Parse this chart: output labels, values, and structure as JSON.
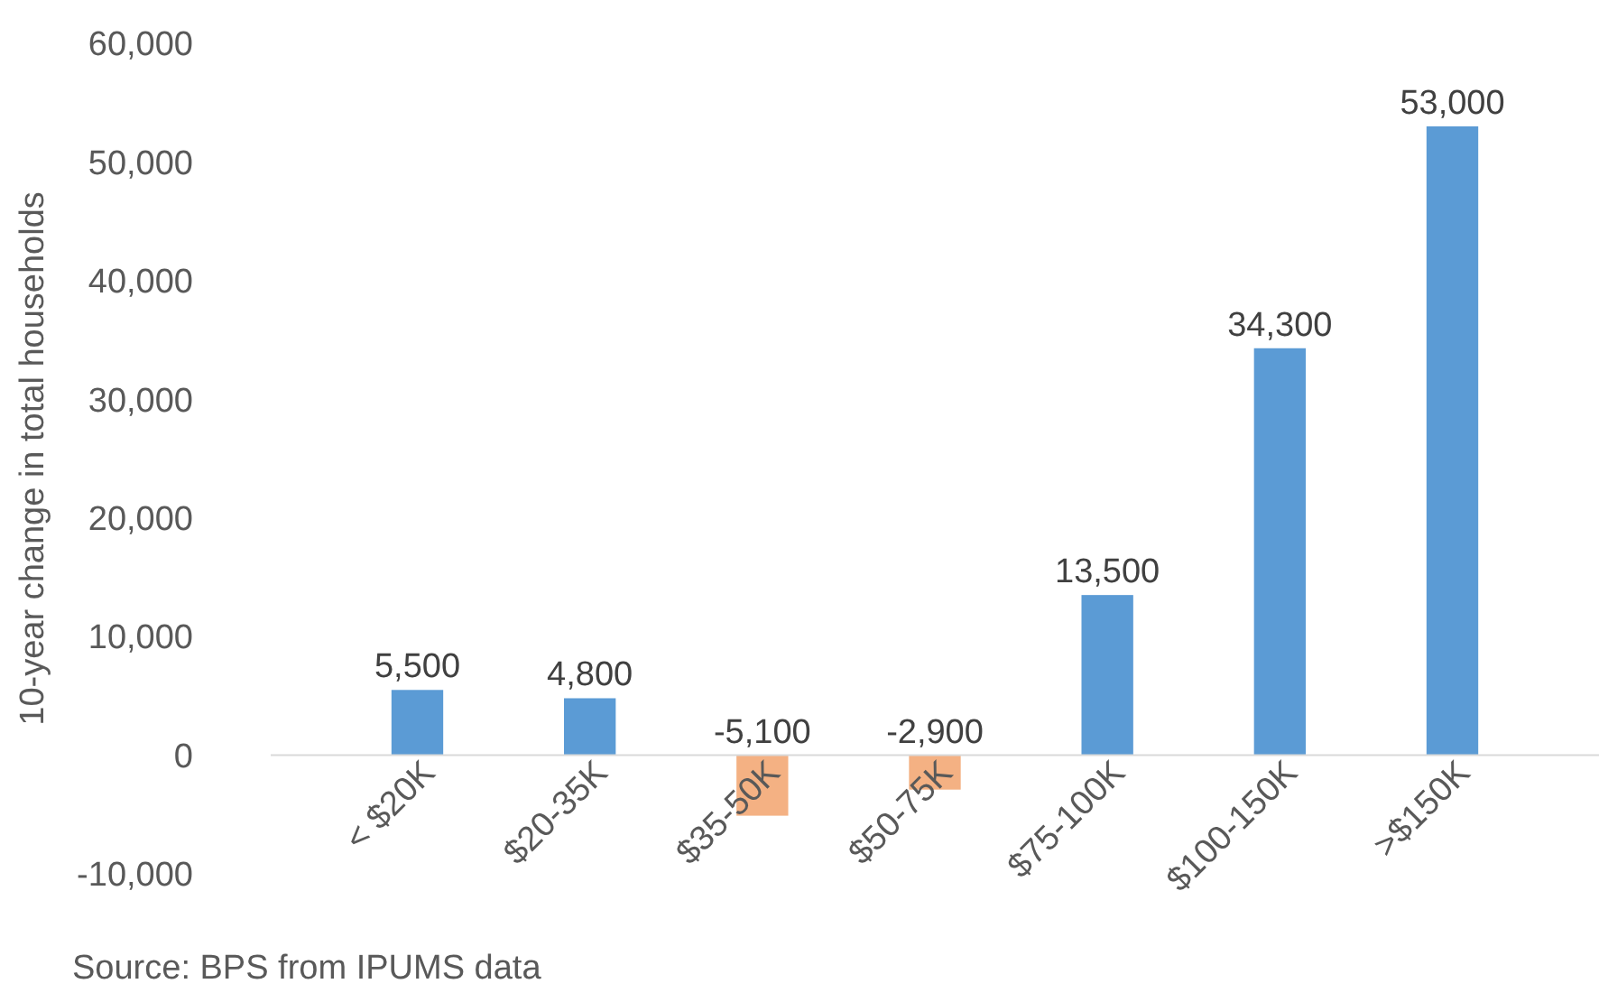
{
  "chart_data": {
    "type": "bar",
    "ylabel": "10-year change in total households",
    "categories": [
      "< $20K",
      "$20-35K",
      "$35-50K",
      "$50-75K",
      "$75-100K",
      "$100-150K",
      ">$150K"
    ],
    "values": [
      5500,
      4800,
      -5100,
      -2900,
      13500,
      34300,
      53000
    ],
    "colors": [
      "#5b9bd5",
      "#5b9bd5",
      "#f4b183",
      "#f4b183",
      "#5b9bd5",
      "#5b9bd5",
      "#5b9bd5"
    ],
    "ylim": [
      -10000,
      60000
    ],
    "yticks": [
      {
        "value": -10000,
        "label": "-10,000"
      },
      0,
      {
        "value": 10000,
        "label": "10,000"
      },
      {
        "value": 20000,
        "label": "20,000"
      },
      {
        "value": 30000,
        "label": "30,000"
      },
      {
        "value": 40000,
        "label": "40,000"
      },
      {
        "value": 50000,
        "label": "50,000"
      },
      {
        "value": 60000,
        "label": "60,000"
      }
    ],
    "value_labels": [
      "5,500",
      "4,800",
      "-5,100",
      "-2,900",
      "13,500",
      "34,300",
      "53,000"
    ],
    "grid": false,
    "annotations": [
      "Source: BPS from IPUMS data"
    ]
  }
}
